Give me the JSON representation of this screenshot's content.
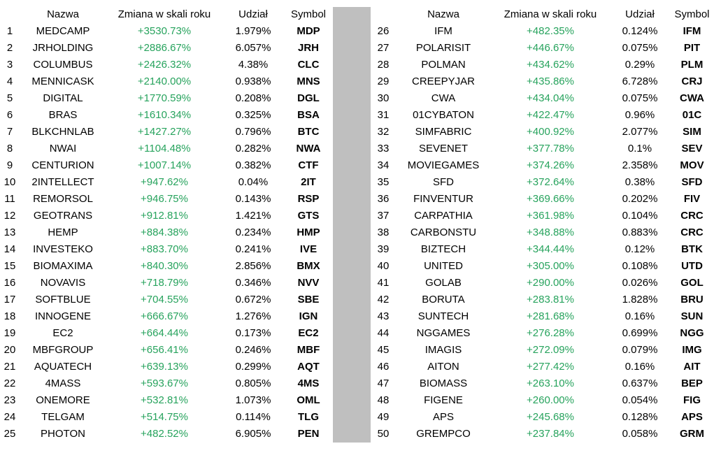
{
  "colors": {
    "positive_change": "#27A35D",
    "divider_gray": "#BFBFBF",
    "text": "#000000",
    "background": "#FFFFFF"
  },
  "chart_data": {
    "type": "table",
    "title": "",
    "columns": [
      "Nazwa",
      "Zmiana w skali roku",
      "Udział",
      "Symbol"
    ],
    "panels": [
      {
        "name": "left",
        "rows": [
          {
            "rank": "1",
            "name": "MEDCAMP",
            "change": "+3530.73%",
            "share": "1.979%",
            "symbol": "MDP"
          },
          {
            "rank": "2",
            "name": "JRHOLDING",
            "change": "+2886.67%",
            "share": "6.057%",
            "symbol": "JRH"
          },
          {
            "rank": "3",
            "name": "COLUMBUS",
            "change": "+2426.32%",
            "share": "4.38%",
            "symbol": "CLC"
          },
          {
            "rank": "4",
            "name": "MENNICASK",
            "change": "+2140.00%",
            "share": "0.938%",
            "symbol": "MNS"
          },
          {
            "rank": "5",
            "name": "DIGITAL",
            "change": "+1770.59%",
            "share": "0.208%",
            "symbol": "DGL"
          },
          {
            "rank": "6",
            "name": "BRAS",
            "change": "+1610.34%",
            "share": "0.325%",
            "symbol": "BSA"
          },
          {
            "rank": "7",
            "name": "BLKCHNLAB",
            "change": "+1427.27%",
            "share": "0.796%",
            "symbol": "BTC"
          },
          {
            "rank": "8",
            "name": "NWAI",
            "change": "+1104.48%",
            "share": "0.282%",
            "symbol": "NWA"
          },
          {
            "rank": "9",
            "name": "CENTURION",
            "change": "+1007.14%",
            "share": "0.382%",
            "symbol": "CTF"
          },
          {
            "rank": "10",
            "name": "2INTELLECT",
            "change": "+947.62%",
            "share": "0.04%",
            "symbol": "2IT"
          },
          {
            "rank": "11",
            "name": "REMORSOL",
            "change": "+946.75%",
            "share": "0.143%",
            "symbol": "RSP"
          },
          {
            "rank": "12",
            "name": "GEOTRANS",
            "change": "+912.81%",
            "share": "1.421%",
            "symbol": "GTS"
          },
          {
            "rank": "13",
            "name": "HEMP",
            "change": "+884.38%",
            "share": "0.234%",
            "symbol": "HMP"
          },
          {
            "rank": "14",
            "name": "INVESTEKO",
            "change": "+883.70%",
            "share": "0.241%",
            "symbol": "IVE"
          },
          {
            "rank": "15",
            "name": "BIOMAXIMA",
            "change": "+840.30%",
            "share": "2.856%",
            "symbol": "BMX"
          },
          {
            "rank": "16",
            "name": "NOVAVIS",
            "change": "+718.79%",
            "share": "0.346%",
            "symbol": "NVV"
          },
          {
            "rank": "17",
            "name": "SOFTBLUE",
            "change": "+704.55%",
            "share": "0.672%",
            "symbol": "SBE"
          },
          {
            "rank": "18",
            "name": "INNOGENE",
            "change": "+666.67%",
            "share": "1.276%",
            "symbol": "IGN"
          },
          {
            "rank": "19",
            "name": "EC2",
            "change": "+664.44%",
            "share": "0.173%",
            "symbol": "EC2"
          },
          {
            "rank": "20",
            "name": "MBFGROUP",
            "change": "+656.41%",
            "share": "0.246%",
            "symbol": "MBF"
          },
          {
            "rank": "21",
            "name": "AQUATECH",
            "change": "+639.13%",
            "share": "0.299%",
            "symbol": "AQT"
          },
          {
            "rank": "22",
            "name": "4MASS",
            "change": "+593.67%",
            "share": "0.805%",
            "symbol": "4MS"
          },
          {
            "rank": "23",
            "name": "ONEMORE",
            "change": "+532.81%",
            "share": "1.073%",
            "symbol": "OML"
          },
          {
            "rank": "24",
            "name": "TELGAM",
            "change": "+514.75%",
            "share": "0.114%",
            "symbol": "TLG"
          },
          {
            "rank": "25",
            "name": "PHOTON",
            "change": "+482.52%",
            "share": "6.905%",
            "symbol": "PEN"
          }
        ]
      },
      {
        "name": "right",
        "rows": [
          {
            "rank": "26",
            "name": "IFM",
            "change": "+482.35%",
            "share": "0.124%",
            "symbol": "IFM"
          },
          {
            "rank": "27",
            "name": "POLARISIT",
            "change": "+446.67%",
            "share": "0.075%",
            "symbol": "PIT"
          },
          {
            "rank": "28",
            "name": "POLMAN",
            "change": "+434.62%",
            "share": "0.29%",
            "symbol": "PLM"
          },
          {
            "rank": "29",
            "name": "CREEPYJAR",
            "change": "+435.86%",
            "share": "6.728%",
            "symbol": "CRJ"
          },
          {
            "rank": "30",
            "name": "CWA",
            "change": "+434.04%",
            "share": "0.075%",
            "symbol": "CWA"
          },
          {
            "rank": "31",
            "name": "01CYBATON",
            "change": "+422.47%",
            "share": "0.96%",
            "symbol": "01C"
          },
          {
            "rank": "32",
            "name": "SIMFABRIC",
            "change": "+400.92%",
            "share": "2.077%",
            "symbol": "SIM"
          },
          {
            "rank": "33",
            "name": "SEVENET",
            "change": "+377.78%",
            "share": "0.1%",
            "symbol": "SEV"
          },
          {
            "rank": "34",
            "name": "MOVIEGAMES",
            "change": "+374.26%",
            "share": "2.358%",
            "symbol": "MOV"
          },
          {
            "rank": "35",
            "name": "SFD",
            "change": "+372.64%",
            "share": "0.38%",
            "symbol": "SFD"
          },
          {
            "rank": "36",
            "name": "FINVENTUR",
            "change": "+369.66%",
            "share": "0.202%",
            "symbol": "FIV"
          },
          {
            "rank": "37",
            "name": "CARPATHIA",
            "change": "+361.98%",
            "share": "0.104%",
            "symbol": "CRC"
          },
          {
            "rank": "38",
            "name": "CARBONSTU",
            "change": "+348.88%",
            "share": "0.883%",
            "symbol": "CRC"
          },
          {
            "rank": "39",
            "name": "BIZTECH",
            "change": "+344.44%",
            "share": "0.12%",
            "symbol": "BTK"
          },
          {
            "rank": "40",
            "name": "UNITED",
            "change": "+305.00%",
            "share": "0.108%",
            "symbol": "UTD"
          },
          {
            "rank": "41",
            "name": "GOLAB",
            "change": "+290.00%",
            "share": "0.026%",
            "symbol": "GOL"
          },
          {
            "rank": "42",
            "name": "BORUTA",
            "change": "+283.81%",
            "share": "1.828%",
            "symbol": "BRU"
          },
          {
            "rank": "43",
            "name": "SUNTECH",
            "change": "+281.68%",
            "share": "0.16%",
            "symbol": "SUN"
          },
          {
            "rank": "44",
            "name": "NGGAMES",
            "change": "+276.28%",
            "share": "0.699%",
            "symbol": "NGG"
          },
          {
            "rank": "45",
            "name": "IMAGIS",
            "change": "+272.09%",
            "share": "0.079%",
            "symbol": "IMG"
          },
          {
            "rank": "46",
            "name": "AITON",
            "change": "+277.42%",
            "share": "0.16%",
            "symbol": "AIT"
          },
          {
            "rank": "47",
            "name": "BIOMASS",
            "change": "+263.10%",
            "share": "0.637%",
            "symbol": "BEP"
          },
          {
            "rank": "48",
            "name": "FIGENE",
            "change": "+260.00%",
            "share": "0.054%",
            "symbol": "FIG"
          },
          {
            "rank": "49",
            "name": "APS",
            "change": "+245.68%",
            "share": "0.128%",
            "symbol": "APS"
          },
          {
            "rank": "50",
            "name": "GREMPCO",
            "change": "+237.84%",
            "share": "0.058%",
            "symbol": "GRM"
          }
        ]
      }
    ]
  }
}
